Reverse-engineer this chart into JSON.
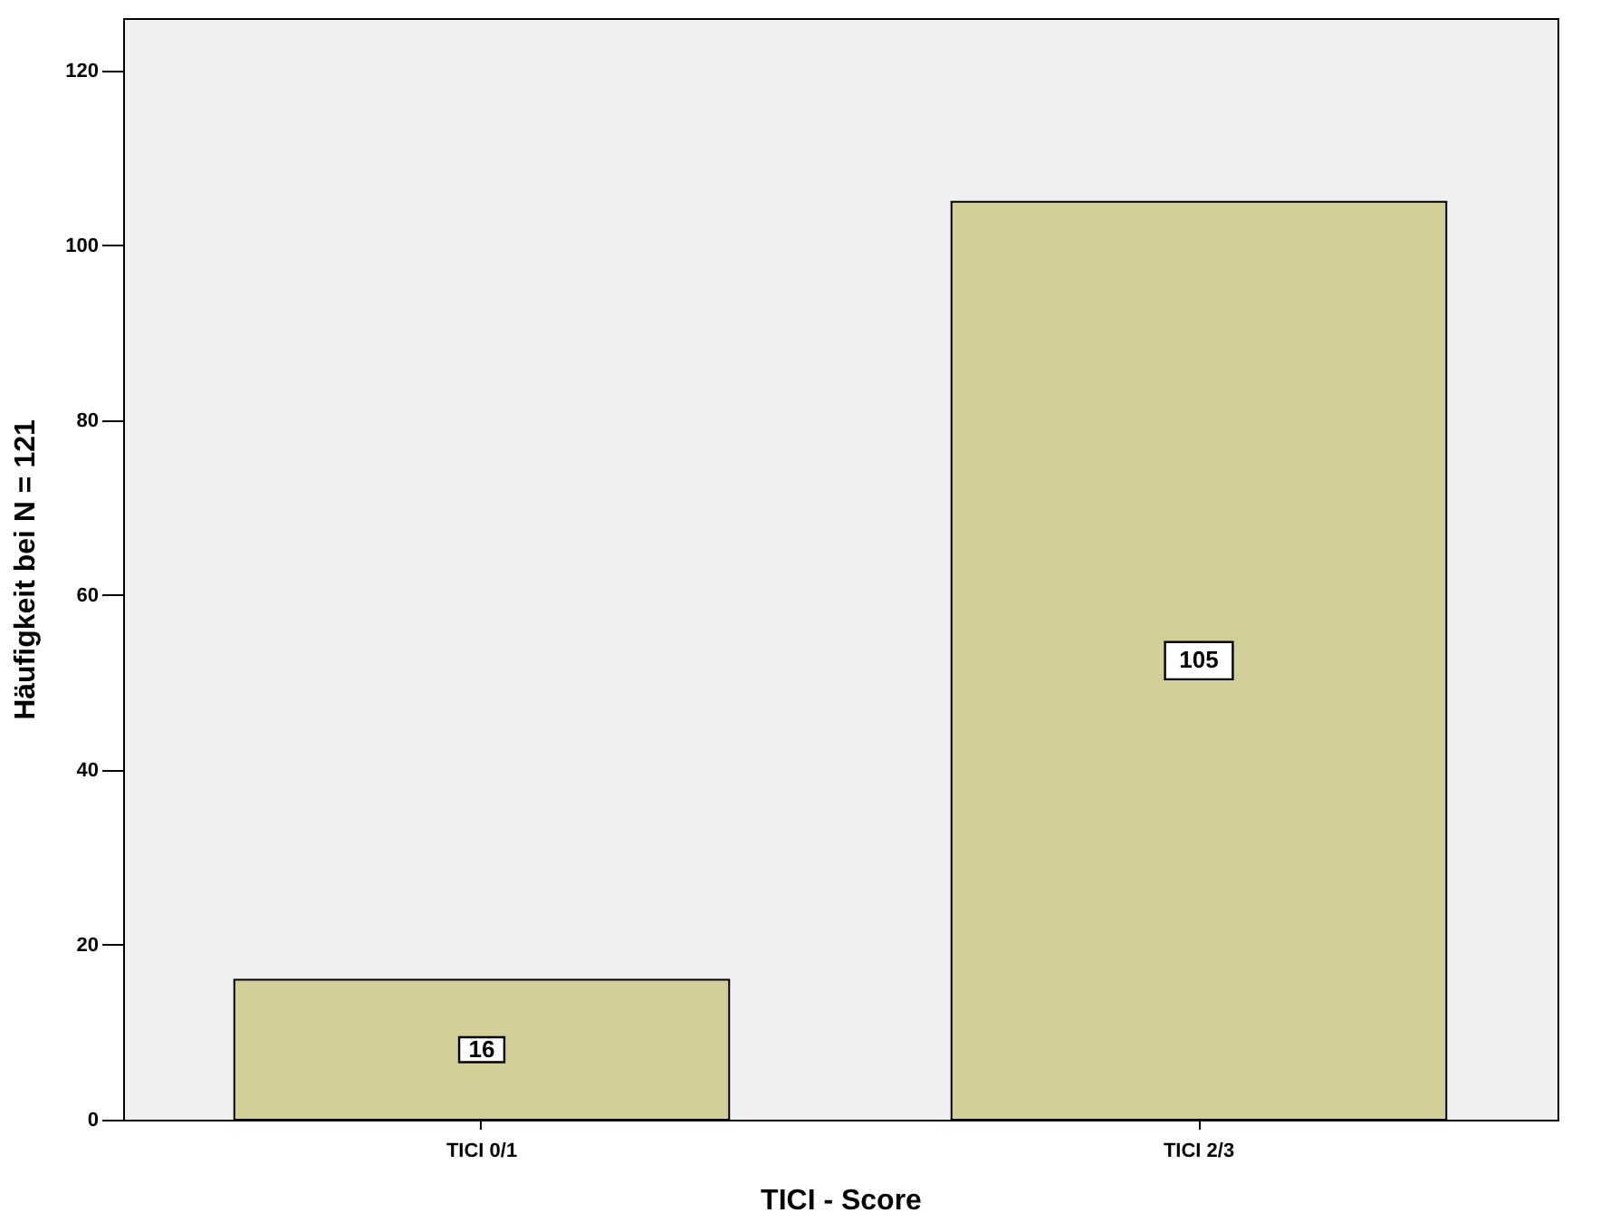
{
  "chart_data": {
    "type": "bar",
    "xlabel": "TICI - Score",
    "ylabel": "Häufigkeit bei N = 121",
    "categories": [
      "TICI 0/1",
      "TICI 2/3"
    ],
    "values": [
      16,
      105
    ],
    "color": "#d3cf98",
    "ylim": [
      0,
      126
    ],
    "yticks": [
      0,
      20,
      40,
      60,
      80,
      100,
      120
    ],
    "grid": false,
    "data_labels": true
  }
}
